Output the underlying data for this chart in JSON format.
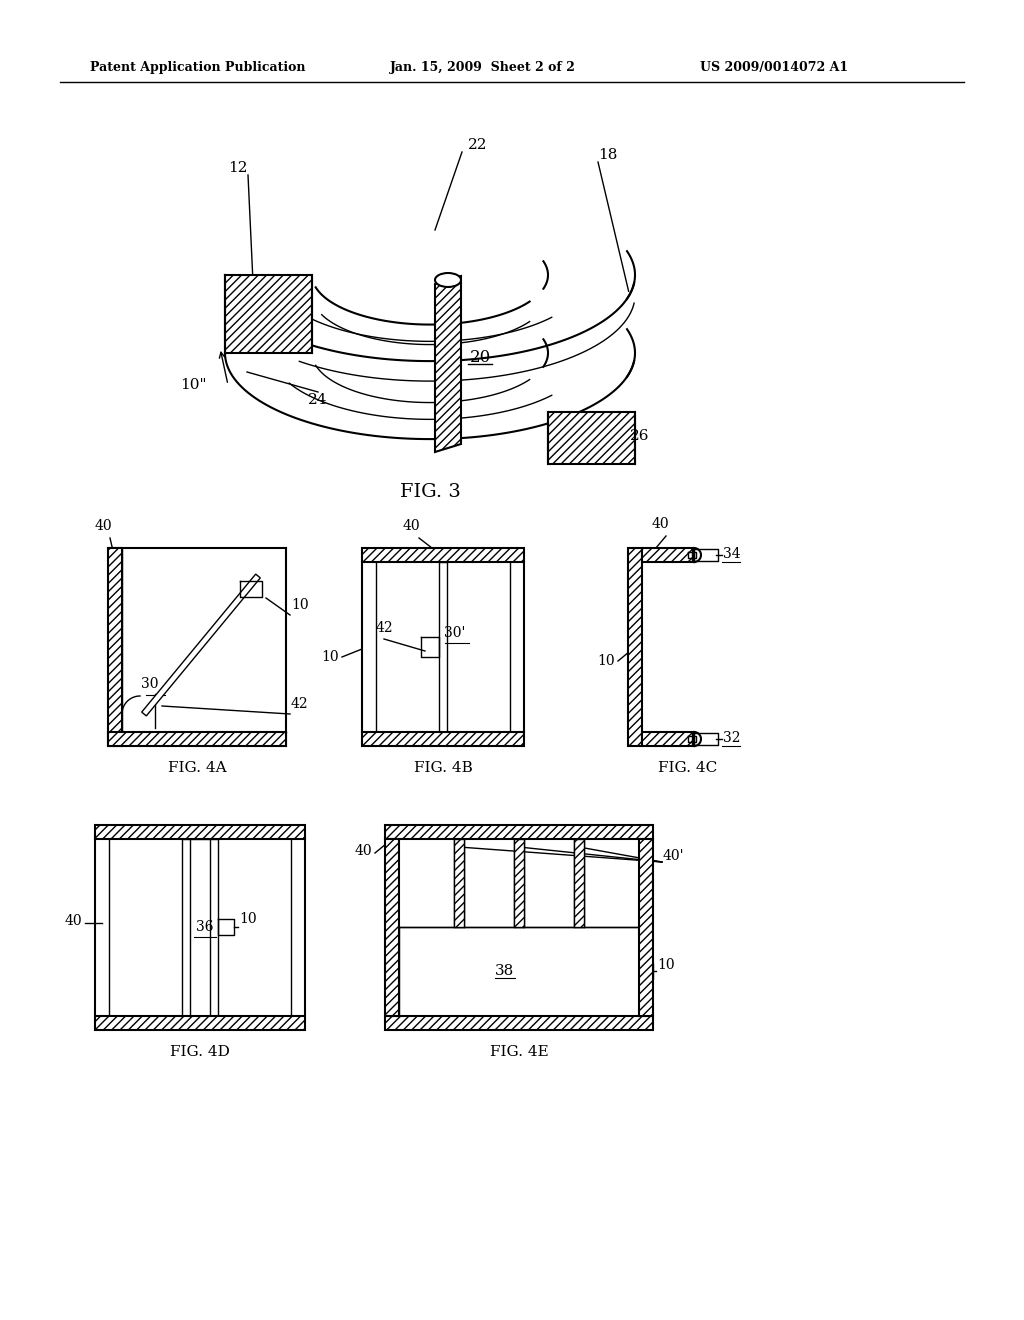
{
  "header_left": "Patent Application Publication",
  "header_mid": "Jan. 15, 2009  Sheet 2 of 2",
  "header_right": "US 2009/0014072 A1",
  "fig3_label": "FIG. 3",
  "fig4a_label": "FIG. 4A",
  "fig4b_label": "FIG. 4B",
  "fig4c_label": "FIG. 4C",
  "fig4d_label": "FIG. 4D",
  "fig4e_label": "FIG. 4E",
  "background_color": "#ffffff",
  "line_color": "#000000"
}
